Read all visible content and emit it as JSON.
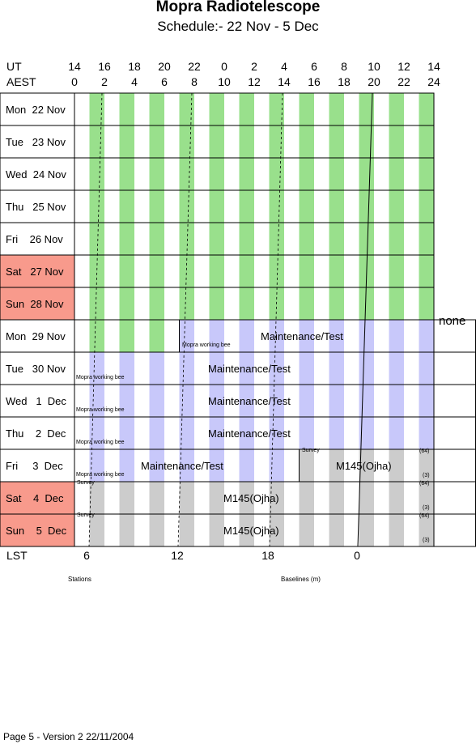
{
  "title": "Mopra Radiotelescope",
  "subtitle": "Schedule:- 22 Nov - 5  Dec",
  "axis": {
    "ut_label": "UT",
    "aest_label": "AEST",
    "lst_label": "LST",
    "ut_ticks": [
      "14",
      "16",
      "18",
      "20",
      "22",
      "0",
      "2",
      "4",
      "6",
      "8",
      "10",
      "12",
      "14"
    ],
    "aest_ticks": [
      "0",
      "2",
      "4",
      "6",
      "8",
      "10",
      "12",
      "14",
      "16",
      "18",
      "20",
      "22",
      "24"
    ],
    "lst_ticks": [
      "6",
      "12",
      "18",
      "0"
    ]
  },
  "days": [
    {
      "label": "Mon  22 Nov",
      "weekend": false
    },
    {
      "label": "Tue   23 Nov",
      "weekend": false
    },
    {
      "label": "Wed  24 Nov",
      "weekend": false
    },
    {
      "label": "Thu   25 Nov",
      "weekend": false
    },
    {
      "label": "Fri    26 Nov",
      "weekend": false
    },
    {
      "label": "Sat   27 Nov",
      "weekend": true
    },
    {
      "label": "Sun  28 Nov",
      "weekend": true
    },
    {
      "label": "Mon  29 Nov",
      "weekend": false
    },
    {
      "label": "Tue   30 Nov",
      "weekend": false
    },
    {
      "label": "Wed   1  Dec",
      "weekend": false
    },
    {
      "label": "Thu    2  Dec",
      "weekend": false
    },
    {
      "label": "Fri     3  Dec",
      "weekend": false
    },
    {
      "label": "Sat    4  Dec",
      "weekend": true
    },
    {
      "label": "Sun    5  Dec",
      "weekend": true
    }
  ],
  "annotations": {
    "none": "none",
    "mopra_bee": "Mopra working bee",
    "maintenance": "Maintenance/Test",
    "survey": "Survey",
    "m145": "M145(Ojha)",
    "n64": "(64)",
    "n3": "(3)"
  },
  "bottom": {
    "stations": "Stations",
    "baselines": "Baselines (m)"
  },
  "footer": "Page 5 - Version 2  22/11/2004",
  "colors": {
    "green": "#99e08c",
    "blue": "#c8c8fa",
    "grey": "#cccccc",
    "weekend": "#f89a8c"
  }
}
